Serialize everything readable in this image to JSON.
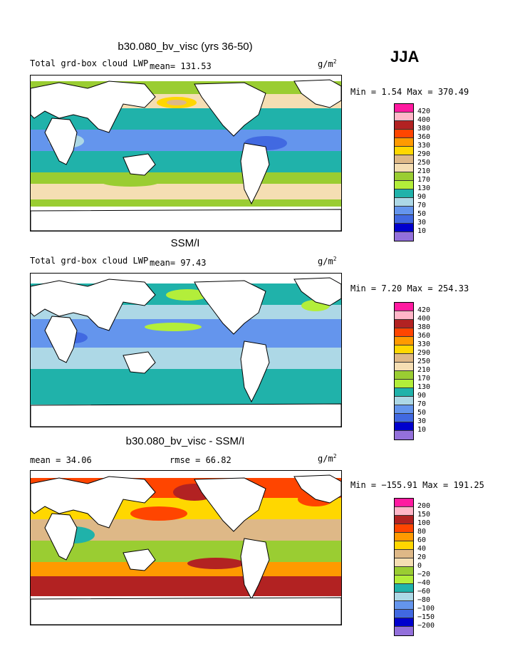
{
  "season": "JJA",
  "panels": [
    {
      "title": "b30.080_bv_visc (yrs 36-50)",
      "subtitle": "Total grd-box cloud LWP",
      "left_text": "",
      "mean_text": "mean= 131.53",
      "rmse_text": "",
      "units": "g/m",
      "units_exp": "2",
      "minmax": "Min =    1.54 Max = 370.49",
      "colorbar": {
        "labels": [
          "420",
          "400",
          "380",
          "360",
          "330",
          "290",
          "250",
          "210",
          "170",
          "130",
          "90",
          "70",
          "50",
          "30",
          "10"
        ],
        "colors": [
          "#ff1aa0",
          "#ffb6c8",
          "#b22222",
          "#ff4500",
          "#ff9a00",
          "#ffd700",
          "#deb887",
          "#f5deb3",
          "#9acd32",
          "#b3ee3a",
          "#20b2aa",
          "#add8e6",
          "#6495ed",
          "#4169e1",
          "#0000cd",
          "#9370db"
        ]
      }
    },
    {
      "title": "SSM/I",
      "subtitle": "Total grd-box cloud LWP",
      "left_text": "",
      "mean_text": "mean=  97.43",
      "rmse_text": "",
      "units": "g/m",
      "units_exp": "2",
      "minmax": "Min =    7.20 Max = 254.33",
      "colorbar": {
        "labels": [
          "420",
          "400",
          "380",
          "360",
          "330",
          "290",
          "250",
          "210",
          "170",
          "130",
          "90",
          "70",
          "50",
          "30",
          "10"
        ],
        "colors": [
          "#ff1aa0",
          "#ffb6c8",
          "#b22222",
          "#ff4500",
          "#ff9a00",
          "#ffd700",
          "#deb887",
          "#f5deb3",
          "#9acd32",
          "#b3ee3a",
          "#20b2aa",
          "#add8e6",
          "#6495ed",
          "#4169e1",
          "#0000cd",
          "#9370db"
        ]
      }
    },
    {
      "title": "b30.080_bv_visc - SSM/I",
      "subtitle": "",
      "left_text": "mean =   34.06",
      "mean_text": "",
      "rmse_text": "rmse =   66.82",
      "units": "g/m",
      "units_exp": "2",
      "minmax": "Min = −155.91 Max = 191.25",
      "colorbar": {
        "labels": [
          "200",
          "150",
          "100",
          "80",
          "60",
          "40",
          "20",
          "0",
          "−20",
          "−40",
          "−60",
          "−80",
          "−100",
          "−150",
          "−200"
        ],
        "colors": [
          "#ff1aa0",
          "#ffb6c8",
          "#b22222",
          "#ff4500",
          "#ff9a00",
          "#ffd700",
          "#deb887",
          "#f5deb3",
          "#9acd32",
          "#b3ee3a",
          "#20b2aa",
          "#add8e6",
          "#6495ed",
          "#4169e1",
          "#0000cd",
          "#9370db"
        ]
      }
    }
  ]
}
